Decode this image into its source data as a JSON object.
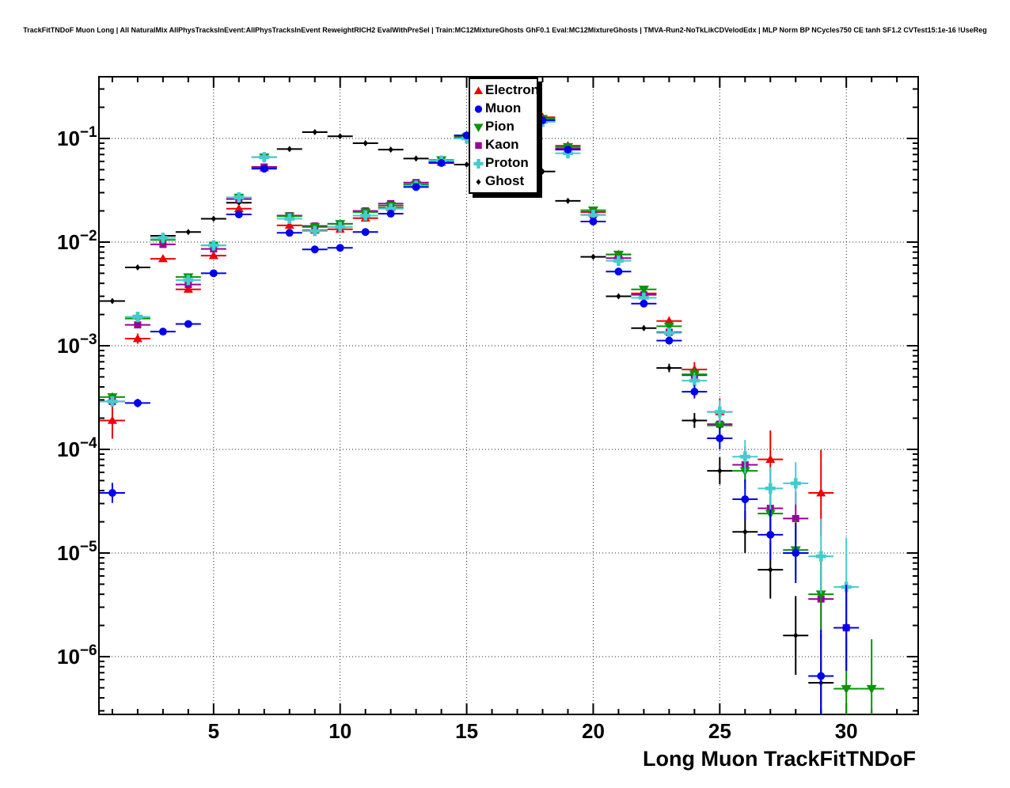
{
  "title": "TrackFitTNDoF Muon Long | All NaturalMix AllPhysTracksInEvent:AllPhysTracksInEvent ReweightRICH2 EvalWithPreSel | Train:MC12MixtureGhosts GhF0.1 Eval:MC12MixtureGhosts | TMVA-Run2-NoTkLikCDVelodEdx | MLP Norm BP NCycles750 CE tanh SF1.2 CVTest15:1e-16 !UseReg",
  "legend": {
    "entries": [
      {
        "label": "Electron"
      },
      {
        "label": "Muon"
      },
      {
        "label": "Pion"
      },
      {
        "label": "Kaon"
      },
      {
        "label": "Proton"
      },
      {
        "label": "Ghost"
      }
    ]
  },
  "chart_data": {
    "type": "scatter",
    "title": "TrackFitTNDoF Muon Long",
    "xlabel": "Long Muon TrackFitTNDoF",
    "ylabel": "",
    "y_scale": "log",
    "x_range": [
      0.47,
      32.84
    ],
    "y_range": [
      2.77e-07,
      0.394
    ],
    "x_major_ticks": [
      5,
      10,
      15,
      20,
      25,
      30
    ],
    "y_decade_exponents": [
      -1,
      -2,
      -3,
      -4,
      -5,
      -6
    ],
    "grid": true,
    "legend_position": "top-center",
    "point_format": "[x, y, yerr_factor]",
    "x_halfbin": 0.5,
    "series": [
      {
        "name": "Electron",
        "color": "#ee0000",
        "marker": "triangle-up",
        "msize": 6,
        "points": [
          [
            1,
            0.00019,
            1.5
          ],
          [
            2,
            0.00117,
            1.12
          ],
          [
            3,
            0.0069,
            1.05
          ],
          [
            4,
            0.0035,
            1.06
          ],
          [
            5,
            0.0074,
            1.04
          ],
          [
            6,
            0.021,
            1.03
          ],
          [
            7,
            0.052,
            1.02
          ],
          [
            8,
            0.0145,
            1.03
          ],
          [
            9,
            0.013,
            1.03
          ],
          [
            10,
            0.0133,
            1.03
          ],
          [
            11,
            0.017,
            1.03
          ],
          [
            12,
            0.0215,
            1.03
          ],
          [
            13,
            0.036,
            1.02
          ],
          [
            14,
            0.059,
            1.02
          ],
          [
            15,
            0.105,
            1.02
          ],
          [
            18,
            0.16,
            1.02
          ],
          [
            19,
            0.085,
            1.02
          ],
          [
            20,
            0.0195,
            1.03
          ],
          [
            21,
            0.0076,
            1.05
          ],
          [
            22,
            0.0032,
            1.08
          ],
          [
            23,
            0.00173,
            1.1
          ],
          [
            24,
            0.00059,
            1.18
          ],
          [
            25,
            0.00023,
            1.35
          ],
          [
            27,
            8e-05,
            1.9
          ],
          [
            29,
            3.8e-05,
            2.6
          ]
        ]
      },
      {
        "name": "Muon",
        "color": "#0000ee",
        "marker": "circle",
        "msize": 5.5,
        "points": [
          [
            1,
            3.8e-05,
            1.25
          ],
          [
            2,
            0.00028,
            1.1
          ],
          [
            3,
            0.00137,
            1.05
          ],
          [
            4,
            0.00162,
            1.05
          ],
          [
            5,
            0.005,
            1.03
          ],
          [
            6,
            0.0185,
            1.02
          ],
          [
            7,
            0.051,
            1.02
          ],
          [
            8,
            0.0123,
            1.02
          ],
          [
            9,
            0.0085,
            1.02
          ],
          [
            10,
            0.0088,
            1.02
          ],
          [
            11,
            0.0125,
            1.02
          ],
          [
            12,
            0.0188,
            1.02
          ],
          [
            13,
            0.034,
            1.02
          ],
          [
            14,
            0.058,
            1.02
          ],
          [
            15,
            0.107,
            1.02
          ],
          [
            18,
            0.15,
            1.02
          ],
          [
            19,
            0.078,
            1.02
          ],
          [
            20,
            0.0158,
            1.02
          ],
          [
            21,
            0.0052,
            1.04
          ],
          [
            22,
            0.00255,
            1.06
          ],
          [
            23,
            0.00112,
            1.09
          ],
          [
            24,
            0.00036,
            1.16
          ],
          [
            25,
            0.000128,
            1.28
          ],
          [
            26,
            3.3e-05,
            1.55
          ],
          [
            27,
            1.5e-05,
            1.75
          ],
          [
            28,
            1e-05,
            1.95
          ],
          [
            29,
            6.5e-07,
            2.8
          ],
          [
            30,
            1.9e-06,
            2.6
          ]
        ]
      },
      {
        "name": "Pion",
        "color": "#089408",
        "marker": "triangle-down",
        "msize": 6.5,
        "points": [
          [
            1,
            0.00032,
            1.1
          ],
          [
            2,
            0.00183,
            1.05
          ],
          [
            3,
            0.0105,
            1.03
          ],
          [
            4,
            0.0046,
            1.04
          ],
          [
            5,
            0.0093,
            1.03
          ],
          [
            6,
            0.027,
            1.02
          ],
          [
            7,
            0.066,
            1.02
          ],
          [
            8,
            0.0178,
            1.02
          ],
          [
            9,
            0.014,
            1.02
          ],
          [
            10,
            0.015,
            1.02
          ],
          [
            11,
            0.0195,
            1.02
          ],
          [
            12,
            0.0225,
            1.02
          ],
          [
            13,
            0.036,
            1.02
          ],
          [
            14,
            0.062,
            1.02
          ],
          [
            15,
            0.103,
            1.02
          ],
          [
            18,
            0.155,
            1.02
          ],
          [
            19,
            0.083,
            1.02
          ],
          [
            20,
            0.0203,
            1.02
          ],
          [
            21,
            0.0076,
            1.04
          ],
          [
            22,
            0.0035,
            1.06
          ],
          [
            23,
            0.00154,
            1.09
          ],
          [
            24,
            0.00053,
            1.15
          ],
          [
            25,
            0.00017,
            1.3
          ],
          [
            26,
            6.2e-05,
            1.5
          ],
          [
            27,
            2.4e-05,
            1.7
          ],
          [
            28,
            1.07e-05,
            1.95
          ],
          [
            29,
            4e-06,
            2.3
          ],
          [
            30,
            4.9e-07,
            3.0
          ],
          [
            31,
            4.9e-07,
            3.0
          ]
        ]
      },
      {
        "name": "Kaon",
        "color": "#990099",
        "marker": "square",
        "msize": 5,
        "points": [
          [
            1,
            0.00029,
            1.12
          ],
          [
            2,
            0.00159,
            1.06
          ],
          [
            3,
            0.0095,
            1.03
          ],
          [
            4,
            0.0039,
            1.04
          ],
          [
            5,
            0.0086,
            1.03
          ],
          [
            6,
            0.026,
            1.02
          ],
          [
            7,
            0.053,
            1.02
          ],
          [
            8,
            0.018,
            1.02
          ],
          [
            9,
            0.0143,
            1.02
          ],
          [
            10,
            0.015,
            1.02
          ],
          [
            11,
            0.02,
            1.02
          ],
          [
            12,
            0.0235,
            1.02
          ],
          [
            13,
            0.0375,
            1.02
          ],
          [
            14,
            0.059,
            1.02
          ],
          [
            15,
            0.105,
            1.02
          ],
          [
            18,
            0.15,
            1.02
          ],
          [
            19,
            0.08,
            1.02
          ],
          [
            20,
            0.0183,
            1.03
          ],
          [
            21,
            0.007,
            1.04
          ],
          [
            22,
            0.0031,
            1.07
          ],
          [
            23,
            0.00135,
            1.1
          ],
          [
            24,
            0.00052,
            1.16
          ],
          [
            25,
            0.000175,
            1.3
          ],
          [
            26,
            7.1e-05,
            1.5
          ],
          [
            27,
            2.7e-05,
            1.7
          ],
          [
            28,
            2.15e-05,
            1.8
          ],
          [
            29,
            3.6e-06,
            2.4
          ],
          [
            30,
            1.9e-06,
            2.6
          ]
        ]
      },
      {
        "name": "Proton",
        "color": "#44cccc",
        "marker": "cross",
        "msize": 6.5,
        "points": [
          [
            1,
            0.00029,
            1.12
          ],
          [
            2,
            0.0019,
            1.06
          ],
          [
            3,
            0.011,
            1.03
          ],
          [
            4,
            0.0043,
            1.04
          ],
          [
            5,
            0.0093,
            1.03
          ],
          [
            6,
            0.027,
            1.02
          ],
          [
            7,
            0.066,
            1.02
          ],
          [
            8,
            0.0168,
            1.02
          ],
          [
            9,
            0.0128,
            1.03
          ],
          [
            10,
            0.014,
            1.03
          ],
          [
            11,
            0.018,
            1.03
          ],
          [
            12,
            0.021,
            1.03
          ],
          [
            13,
            0.035,
            1.02
          ],
          [
            14,
            0.061,
            1.02
          ],
          [
            15,
            0.1,
            1.02
          ],
          [
            18,
            0.145,
            1.02
          ],
          [
            19,
            0.072,
            1.02
          ],
          [
            20,
            0.0183,
            1.03
          ],
          [
            21,
            0.0066,
            1.05
          ],
          [
            22,
            0.0029,
            1.08
          ],
          [
            23,
            0.00133,
            1.12
          ],
          [
            24,
            0.00046,
            1.2
          ],
          [
            25,
            0.00023,
            1.3
          ],
          [
            26,
            8.5e-05,
            1.45
          ],
          [
            27,
            4.2e-05,
            1.6
          ],
          [
            28,
            4.7e-05,
            1.6
          ],
          [
            29,
            9.3e-06,
            2.3
          ],
          [
            30,
            4.7e-06,
            3.0
          ]
        ]
      },
      {
        "name": "Ghost",
        "color": "#000000",
        "marker": "diamond",
        "msize": 4,
        "points": [
          [
            1,
            0.0027,
            1.03
          ],
          [
            2,
            0.0057,
            1.02
          ],
          [
            3,
            0.0115,
            1.02
          ],
          [
            4,
            0.0125,
            1.02
          ],
          [
            5,
            0.0168,
            1.02
          ],
          [
            6,
            0.024,
            1.02
          ],
          [
            7,
            0.053,
            1.01
          ],
          [
            8,
            0.079,
            1.01
          ],
          [
            9,
            0.115,
            1.01
          ],
          [
            10,
            0.105,
            1.01
          ],
          [
            11,
            0.09,
            1.01
          ],
          [
            12,
            0.078,
            1.01
          ],
          [
            13,
            0.064,
            1.01
          ],
          [
            14,
            0.0605,
            1.01
          ],
          [
            15,
            0.056,
            1.01
          ],
          [
            18,
            0.048,
            1.01
          ],
          [
            19,
            0.025,
            1.02
          ],
          [
            20,
            0.0072,
            1.03
          ],
          [
            21,
            0.003,
            1.04
          ],
          [
            22,
            0.00148,
            1.06
          ],
          [
            23,
            0.00061,
            1.1
          ],
          [
            24,
            0.00019,
            1.18
          ],
          [
            25,
            6.2e-05,
            1.35
          ],
          [
            26,
            1.6e-05,
            1.6
          ],
          [
            27,
            6.9e-06,
            1.9
          ],
          [
            28,
            1.6e-06,
            2.4
          ],
          [
            29,
            5.6e-07,
            2.9
          ]
        ]
      }
    ]
  }
}
